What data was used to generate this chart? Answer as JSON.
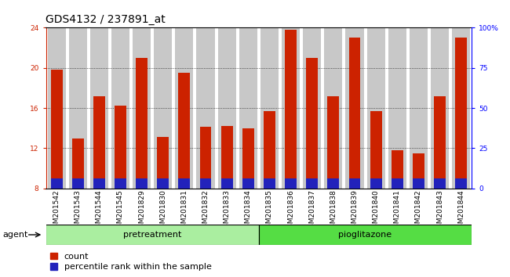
{
  "title": "GDS4132 / 237891_at",
  "categories": [
    "GSM201542",
    "GSM201543",
    "GSM201544",
    "GSM201545",
    "GSM201829",
    "GSM201830",
    "GSM201831",
    "GSM201832",
    "GSM201833",
    "GSM201834",
    "GSM201835",
    "GSM201836",
    "GSM201837",
    "GSM201838",
    "GSM201839",
    "GSM201840",
    "GSM201841",
    "GSM201842",
    "GSM201843",
    "GSM201844"
  ],
  "count_values": [
    19.8,
    13.0,
    17.2,
    16.2,
    21.0,
    13.1,
    19.5,
    14.1,
    14.2,
    14.0,
    15.7,
    23.8,
    21.0,
    17.2,
    23.0,
    15.7,
    11.8,
    11.5,
    17.2,
    23.0
  ],
  "percentile_values": [
    1.0,
    1.0,
    1.0,
    1.0,
    1.0,
    1.0,
    1.0,
    1.0,
    1.0,
    1.0,
    1.0,
    1.0,
    1.0,
    1.0,
    1.0,
    1.0,
    1.0,
    1.0,
    1.0,
    1.0
  ],
  "bar_bottom": 8.0,
  "ylim_left": [
    8,
    24
  ],
  "ylim_right": [
    0,
    100
  ],
  "yticks_left": [
    8,
    12,
    16,
    20,
    24
  ],
  "yticks_right": [
    0,
    25,
    50,
    75,
    100
  ],
  "ytick_labels_right": [
    "0",
    "25",
    "50",
    "75",
    "100%"
  ],
  "count_color": "#cc2200",
  "percentile_color": "#2222bb",
  "grid_color": "#555555",
  "bar_bg_color": "#c8c8c8",
  "pretreatment_color": "#aaeea0",
  "pioglitazone_color": "#55dd44",
  "pretreatment_label": "pretreatment",
  "pioglitazone_label": "pioglitazone",
  "pretreatment_indices": [
    0,
    1,
    2,
    3,
    4,
    5,
    6,
    7,
    8,
    9
  ],
  "pioglitazone_indices": [
    10,
    11,
    12,
    13,
    14,
    15,
    16,
    17,
    18,
    19
  ],
  "agent_label": "agent",
  "legend_count_label": "count",
  "legend_percentile_label": "percentile rank within the sample",
  "title_fontsize": 10,
  "tick_fontsize": 6.5,
  "label_fontsize": 8,
  "agent_fontsize": 8,
  "bar_width": 0.55,
  "bg_bar_width": 0.85
}
